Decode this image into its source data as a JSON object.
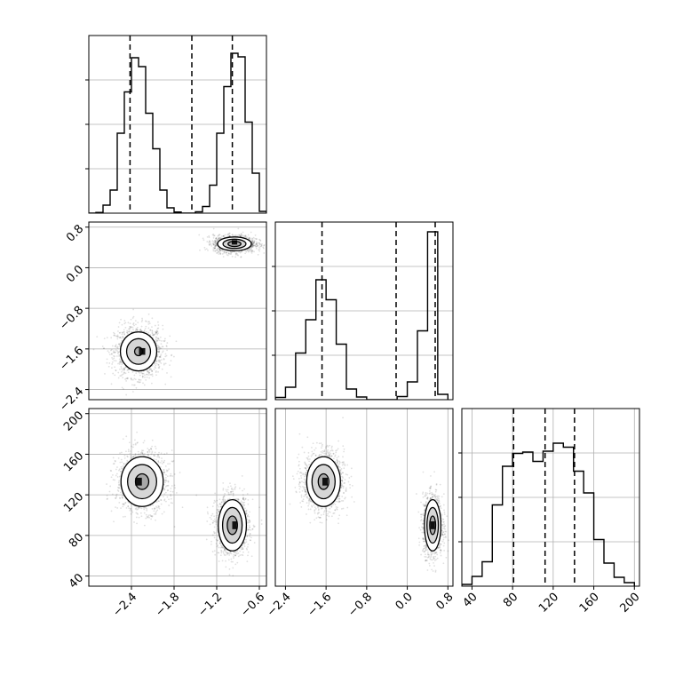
{
  "chart_data": {
    "type": "corner",
    "grid": true,
    "panels": [
      {
        "id": "p11",
        "kind": "hist1d",
        "position": "row1-col1",
        "xlim": [
          -3.0,
          -0.5
        ],
        "ylim": [
          0,
          4000
        ],
        "bins": [
          [
            -2.95,
            0
          ],
          [
            -2.85,
            15
          ],
          [
            -2.75,
            180
          ],
          [
            -2.65,
            520
          ],
          [
            -2.55,
            1800
          ],
          [
            -2.45,
            2730
          ],
          [
            -2.35,
            3500
          ],
          [
            -2.25,
            3300
          ],
          [
            -2.15,
            2250
          ],
          [
            -2.05,
            1450
          ],
          [
            -1.95,
            520
          ],
          [
            -1.85,
            120
          ],
          [
            -1.75,
            25
          ],
          [
            -1.65,
            0
          ],
          [
            -1.55,
            0
          ],
          [
            -1.45,
            30
          ],
          [
            -1.35,
            150
          ],
          [
            -1.25,
            630
          ],
          [
            -1.15,
            1800
          ],
          [
            -1.05,
            2850
          ],
          [
            -0.95,
            3600
          ],
          [
            -0.85,
            3520
          ],
          [
            -0.75,
            2050
          ],
          [
            -0.65,
            900
          ],
          [
            -0.55,
            40
          ]
        ],
        "quantile_lines": [
          -2.42,
          -1.55,
          -0.98
        ],
        "y_ticks_unlabeled": [
          1000,
          2000,
          3000
        ]
      },
      {
        "id": "p21",
        "kind": "hist2d",
        "position": "row2-col1",
        "xlim": [
          -3.0,
          -0.5
        ],
        "ylim": [
          -2.6,
          0.9
        ],
        "y_ticks": [
          -2.4,
          -1.6,
          -0.8,
          0.0,
          0.8
        ],
        "y_tick_labels": [
          "−2.4",
          "−1.6",
          "−0.8",
          "0.0",
          "0.8"
        ],
        "clusters": [
          {
            "center": [
              -2.3,
              -1.65
            ],
            "sigma": [
              0.16,
              0.24
            ],
            "contour_scales": [
              1.6,
              1.05,
              0.35
            ],
            "peak": [
              -2.25,
              -1.65
            ]
          },
          {
            "center": [
              -0.95,
              0.47
            ],
            "sigma": [
              0.14,
              0.08
            ],
            "contour_scales": [
              1.7,
              1.15,
              0.65
            ],
            "peak": [
              -0.95,
              0.5
            ]
          }
        ]
      },
      {
        "id": "p22",
        "kind": "hist1d",
        "position": "row2-col2",
        "xlim": [
          -2.6,
          0.9
        ],
        "ylim": [
          0,
          4000
        ],
        "bins": [
          [
            -2.5,
            50
          ],
          [
            -2.3,
            280
          ],
          [
            -2.1,
            1050
          ],
          [
            -1.9,
            1800
          ],
          [
            -1.7,
            2700
          ],
          [
            -1.5,
            2250
          ],
          [
            -1.3,
            1250
          ],
          [
            -1.1,
            240
          ],
          [
            -0.9,
            60
          ],
          [
            -0.7,
            0
          ],
          [
            -0.5,
            0
          ],
          [
            -0.3,
            0
          ],
          [
            -0.1,
            70
          ],
          [
            0.1,
            400
          ],
          [
            0.3,
            1550
          ],
          [
            0.5,
            3780
          ],
          [
            0.7,
            120
          ]
        ],
        "quantile_lines": [
          -1.68,
          -0.22,
          0.55
        ],
        "y_ticks_unlabeled": [
          1000,
          2000,
          3000
        ]
      },
      {
        "id": "p31",
        "kind": "hist2d",
        "position": "row3-col1",
        "xlim": [
          -3.0,
          -0.5
        ],
        "ylim": [
          30,
          205
        ],
        "y_ticks": [
          40,
          80,
          120,
          160,
          200
        ],
        "y_tick_labels": [
          "40",
          "80",
          "120",
          "160",
          "200"
        ],
        "x_ticks": [
          -2.4,
          -1.8,
          -1.2,
          -0.6
        ],
        "x_tick_labels": [
          "−2.4",
          "−1.8",
          "−1.2",
          "−0.6"
        ],
        "clusters": [
          {
            "center": [
              -2.25,
              133
            ],
            "sigma": [
              0.17,
              14
            ],
            "contour_scales": [
              1.75,
              1.2,
              0.55
            ],
            "peak": [
              -2.3,
              133
            ]
          },
          {
            "center": [
              -0.98,
              90
            ],
            "sigma": [
              0.11,
              14
            ],
            "contour_scales": [
              1.8,
              1.25,
              0.65
            ],
            "peak": [
              -0.95,
              90
            ]
          }
        ]
      },
      {
        "id": "p32",
        "kind": "hist2d",
        "position": "row3-col2",
        "xlim": [
          -2.6,
          0.9
        ],
        "ylim": [
          30,
          205
        ],
        "x_ticks": [
          -2.4,
          -1.6,
          -0.8,
          0.0,
          0.8
        ],
        "x_tick_labels": [
          "−2.4",
          "−1.6",
          "−0.8",
          "0.0",
          "0.8"
        ],
        "clusters": [
          {
            "center": [
              -1.65,
              133
            ],
            "sigma": [
              0.19,
              14
            ],
            "contour_scales": [
              1.75,
              1.2,
              0.55
            ],
            "peak": [
              -1.62,
              133
            ]
          },
          {
            "center": [
              0.5,
              90
            ],
            "sigma": [
              0.09,
              14
            ],
            "contour_scales": [
              1.8,
              1.25,
              0.65
            ],
            "peak": [
              0.5,
              90
            ]
          }
        ]
      },
      {
        "id": "p33",
        "kind": "hist1d",
        "position": "row3-col3",
        "xlim": [
          30,
          205
        ],
        "ylim": [
          0,
          4000
        ],
        "bins": [
          [
            35,
            40
          ],
          [
            45,
            220
          ],
          [
            55,
            550
          ],
          [
            65,
            1830
          ],
          [
            75,
            2700
          ],
          [
            85,
            2990
          ],
          [
            95,
            3020
          ],
          [
            105,
            2810
          ],
          [
            115,
            3040
          ],
          [
            125,
            3220
          ],
          [
            135,
            3130
          ],
          [
            145,
            2590
          ],
          [
            155,
            2100
          ],
          [
            165,
            1050
          ],
          [
            175,
            520
          ],
          [
            185,
            200
          ],
          [
            195,
            80
          ]
        ],
        "quantile_lines": [
          81,
          112,
          141
        ],
        "x_ticks": [
          40,
          80,
          120,
          160,
          200
        ],
        "x_tick_labels": [
          "40",
          "80",
          "120",
          "160",
          "200"
        ],
        "y_ticks_unlabeled": [
          1000,
          2000,
          3000
        ]
      }
    ]
  }
}
